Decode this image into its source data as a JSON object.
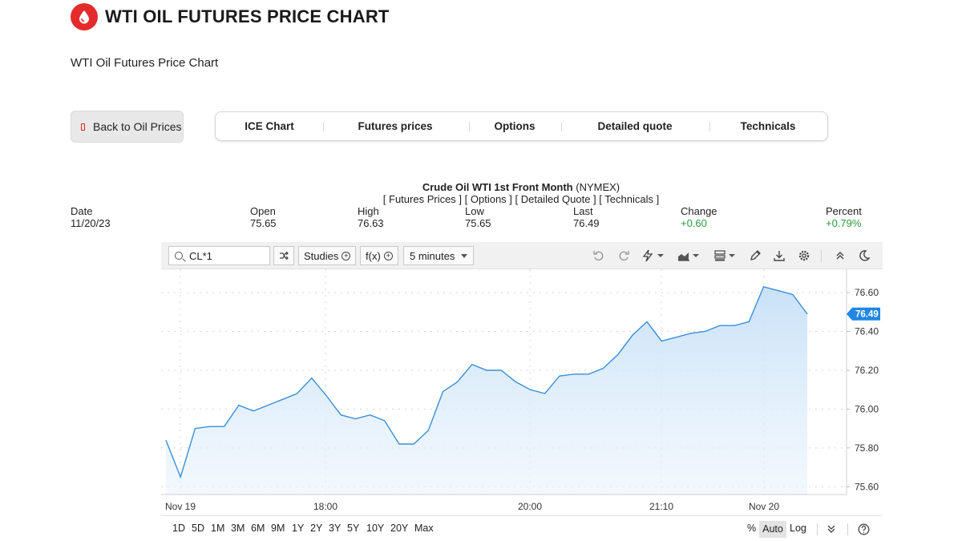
{
  "header": {
    "title": "WTI OIL FUTURES PRICE CHART",
    "subtitle": "WTI Oil Futures Price Chart",
    "logo_icon": "oil-drop-icon",
    "brand_color": "#e32b2b"
  },
  "back_button": {
    "label": "Back to Oil Prices",
    "icon": "oil-barrel-icon"
  },
  "nav_tabs": [
    "ICE Chart",
    "Futures prices",
    "Options",
    "Detailed quote",
    "Technicals"
  ],
  "quote": {
    "title_bold": "Crude Oil WTI 1st Front Month",
    "title_exchange": "(NYMEX)",
    "links": "[ Futures Prices ] [ Options ] [ Detailed Quote ] [ Technicals ]",
    "stats": [
      {
        "label": "Date",
        "value": "11/20/23"
      },
      {
        "label": "Open",
        "value": "75.65"
      },
      {
        "label": "High",
        "value": "76.63"
      },
      {
        "label": "Low",
        "value": "75.65"
      },
      {
        "label": "Last",
        "value": "76.49"
      },
      {
        "label": "Change",
        "value": "+0.60"
      },
      {
        "label": "Percent",
        "value": "+0.79%"
      }
    ],
    "positive_color": "#2a9a3a"
  },
  "toolbar": {
    "symbol": "CL*1",
    "studies_label": "Studies",
    "fx_label": "f(x)",
    "interval_label": "5 minutes",
    "icons": [
      "compare-icon",
      "undo-icon",
      "redo-icon",
      "draw-tools-icon",
      "chart-type-icon",
      "layout-icon",
      "pencil-icon",
      "download-icon",
      "settings-icon",
      "collapse-icon",
      "dark-mode-icon"
    ]
  },
  "chart_data": {
    "type": "area",
    "title": "",
    "xlabel": "",
    "ylabel": "",
    "x_ticks": [
      "Nov 19",
      "18:00",
      "20:00",
      "21:10",
      "Nov 20"
    ],
    "y_ticks": [
      "76.60",
      "76.40",
      "76.20",
      "76.00",
      "75.80",
      "75.60"
    ],
    "ylim": [
      75.56,
      76.72
    ],
    "last_value_label": "76.49",
    "line_color": "#3a8fd8",
    "series": [
      {
        "values": [
          75.84,
          75.65,
          75.9,
          75.91,
          75.91,
          76.02,
          75.99,
          76.02,
          76.05,
          76.08,
          76.16,
          76.07,
          75.97,
          75.95,
          75.97,
          75.94,
          75.82,
          75.82,
          75.89,
          76.09,
          76.14,
          76.23,
          76.2,
          76.2,
          76.14,
          76.1,
          76.08,
          76.17,
          76.18,
          76.18,
          76.21,
          76.28,
          76.38,
          76.45,
          76.35,
          76.37,
          76.39,
          76.4,
          76.43,
          76.43,
          76.45,
          76.63,
          76.61,
          76.59,
          76.49
        ]
      }
    ],
    "grid": true
  },
  "range_bar": {
    "ranges": [
      "1D",
      "5D",
      "1M",
      "3M",
      "6M",
      "9M",
      "1Y",
      "2Y",
      "3Y",
      "5Y",
      "10Y",
      "20Y",
      "Max"
    ],
    "percent_label": "%",
    "auto_label": "Auto",
    "log_label": "Log"
  }
}
